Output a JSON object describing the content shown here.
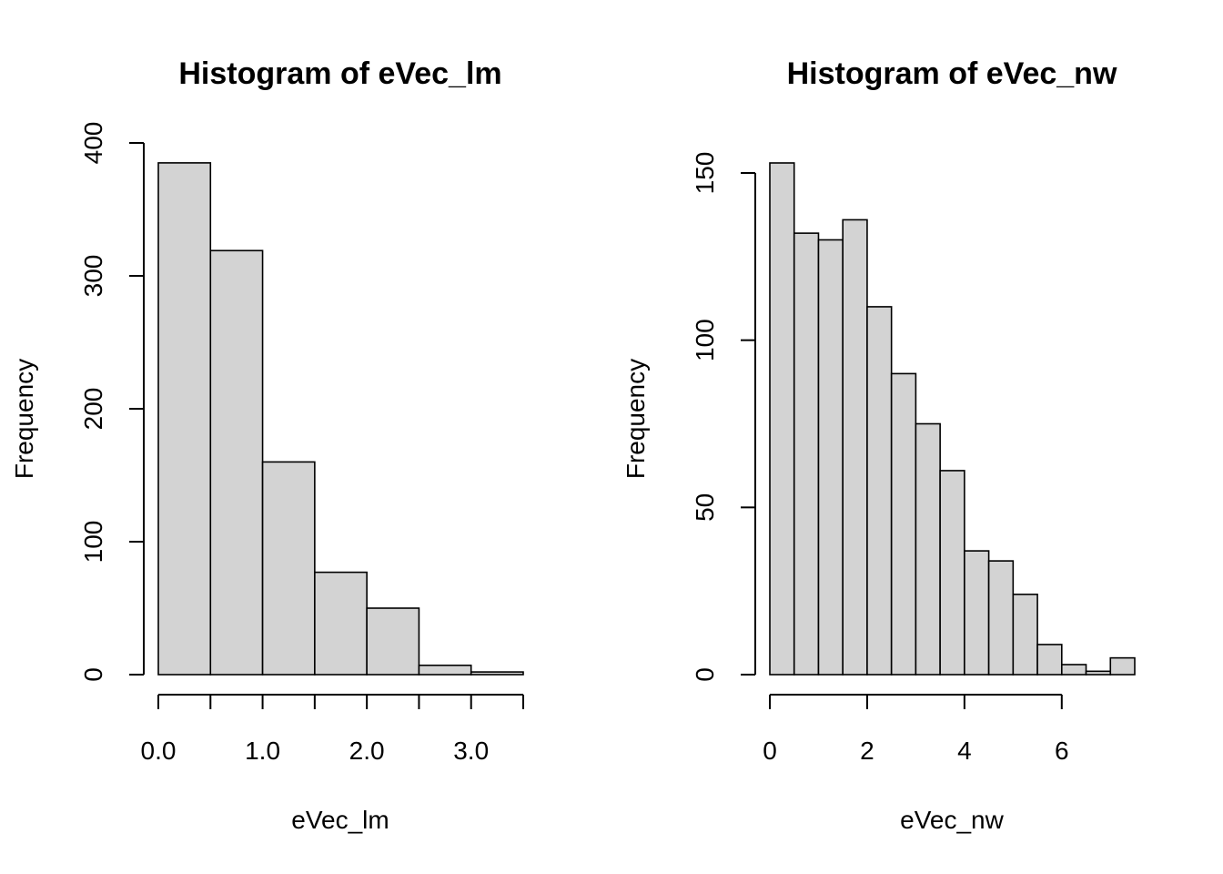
{
  "chart_data": [
    {
      "type": "bar",
      "title": "Histogram of eVec_lm",
      "xlabel": "eVec_lm",
      "ylabel": "Frequency",
      "bar_color": "#D3D3D3",
      "bin_edges": [
        0.0,
        0.5,
        1.0,
        1.5,
        2.0,
        2.5,
        3.0,
        3.5
      ],
      "values": [
        385,
        319,
        160,
        77,
        50,
        7,
        2
      ],
      "xlim": [
        0.0,
        3.5
      ],
      "ylim": [
        0,
        400
      ],
      "x_ticks": [
        0.0,
        0.5,
        1.0,
        1.5,
        2.0,
        2.5,
        3.0,
        3.5
      ],
      "x_tick_labels": [
        "0.0",
        "",
        "1.0",
        "",
        "2.0",
        "",
        "3.0",
        ""
      ],
      "y_ticks": [
        0,
        100,
        200,
        300,
        400
      ],
      "y_tick_labels": [
        "0",
        "100",
        "200",
        "300",
        "400"
      ],
      "grid": false
    },
    {
      "type": "bar",
      "title": "Histogram of eVec_nw",
      "xlabel": "eVec_nw",
      "ylabel": "Frequency",
      "bar_color": "#D3D3D3",
      "bin_edges": [
        0.0,
        0.5,
        1.0,
        1.5,
        2.0,
        2.5,
        3.0,
        3.5,
        4.0,
        4.5,
        5.0,
        5.5,
        6.0,
        6.5,
        7.0,
        7.5
      ],
      "values": [
        153,
        132,
        130,
        136,
        110,
        90,
        75,
        61,
        37,
        34,
        24,
        9,
        3,
        1,
        5
      ],
      "xlim": [
        0,
        7.5
      ],
      "ylim": [
        0,
        150
      ],
      "x_ticks": [
        0,
        2,
        4,
        6
      ],
      "x_tick_labels": [
        "0",
        "2",
        "4",
        "6"
      ],
      "y_ticks": [
        0,
        50,
        100,
        150
      ],
      "y_tick_labels": [
        "0",
        "50",
        "100",
        "150"
      ],
      "grid": false
    }
  ]
}
